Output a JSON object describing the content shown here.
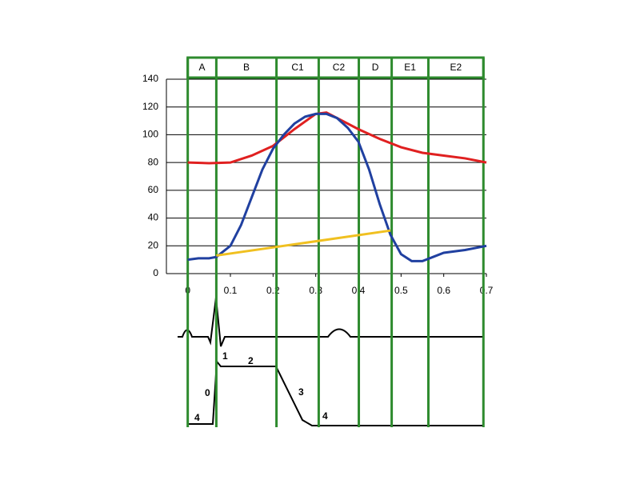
{
  "chart_data": {
    "type": "line",
    "xlim": [
      -0.05,
      0.7
    ],
    "xticks": [
      0,
      0.1,
      0.2,
      0.3,
      0.4,
      0.5,
      0.6,
      0.7
    ],
    "ylim": [
      0,
      140
    ],
    "yticks": [
      0,
      20,
      40,
      60,
      80,
      100,
      120,
      140
    ],
    "grid": true,
    "phase_color": "#2e8b2e",
    "phases": [
      {
        "label": "A",
        "start": 0,
        "end": 0.067
      },
      {
        "label": "B",
        "start": 0.067,
        "end": 0.208
      },
      {
        "label": "C1",
        "start": 0.208,
        "end": 0.307
      },
      {
        "label": "C2",
        "start": 0.307,
        "end": 0.401
      },
      {
        "label": "D",
        "start": 0.401,
        "end": 0.478
      },
      {
        "label": "E1",
        "start": 0.478,
        "end": 0.564
      },
      {
        "label": "E2",
        "start": 0.564,
        "end": 0.693
      }
    ],
    "series": [
      {
        "color": "#e02020",
        "x": [
          0,
          0.05,
          0.1,
          0.15,
          0.2,
          0.25,
          0.3,
          0.325,
          0.35,
          0.4,
          0.45,
          0.5,
          0.55,
          0.6,
          0.65,
          0.7
        ],
        "values": [
          80,
          79.5,
          80,
          85,
          92,
          104,
          115,
          116,
          112,
          104,
          97,
          91,
          87,
          85,
          83,
          80
        ]
      },
      {
        "color": "#2040a0",
        "x": [
          0,
          0.025,
          0.05,
          0.067,
          0.1,
          0.125,
          0.15,
          0.175,
          0.2,
          0.225,
          0.25,
          0.275,
          0.3,
          0.325,
          0.35,
          0.375,
          0.4,
          0.425,
          0.45,
          0.475,
          0.5,
          0.525,
          0.55,
          0.575,
          0.6,
          0.65,
          0.7
        ],
        "values": [
          10,
          11,
          11,
          12,
          20,
          35,
          55,
          75,
          90,
          100,
          108,
          113,
          115,
          115,
          112,
          105,
          95,
          75,
          50,
          28,
          14,
          9,
          9,
          12,
          15,
          17,
          20
        ]
      },
      {
        "color": "#f0c020",
        "x": [
          0.067,
          0.475
        ],
        "values": [
          13,
          31
        ]
      }
    ],
    "annotations": [
      "4",
      "0",
      "1",
      "2",
      "3",
      "4"
    ]
  }
}
